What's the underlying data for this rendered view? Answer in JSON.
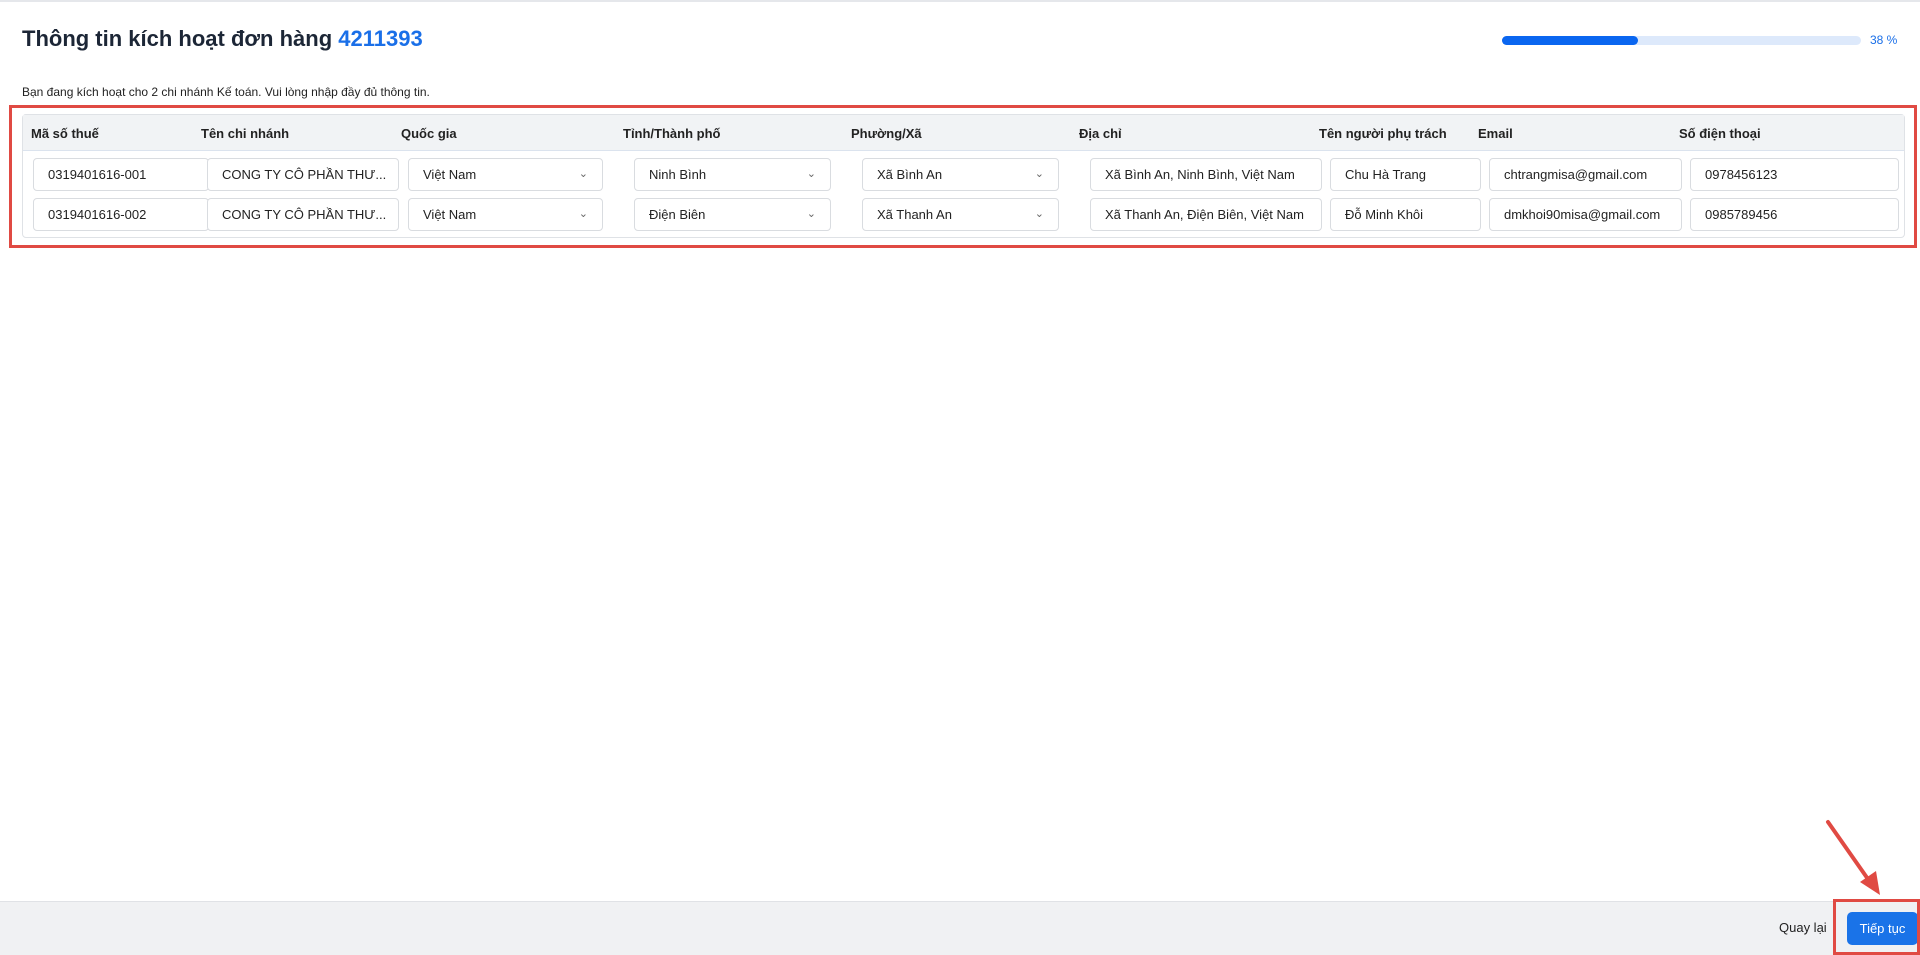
{
  "header": {
    "title": "Thông tin kích hoạt đơn hàng",
    "order_number": "4211393",
    "progress_percent": 38,
    "progress_label": "38 %"
  },
  "subtitle": "Bạn đang kích hoạt cho 2 chi nhánh Kế toán. Vui lòng nhập đầy đủ thông tin.",
  "table": {
    "columns": [
      "Mã số thuế",
      "Tên chi nhánh",
      "Quốc gia",
      "Tỉnh/Thành phố",
      "Phường/Xã",
      "Địa chỉ",
      "Tên người phụ trách",
      "Email",
      "Số điện thoại"
    ],
    "rows": [
      [
        "0319401616-001",
        "CONG TY CÔ PHẦN THƯ...",
        "Việt Nam",
        "Ninh Bình",
        "Xã Bình An",
        "Xã Bình An, Ninh Bình, Việt Nam",
        "Chu Hà Trang",
        "chtrangmisa@gmail.com",
        "0978456123"
      ],
      [
        "0319401616-002",
        "CONG TY CÔ PHẦN THƯ...",
        "Việt Nam",
        "Điện Biên",
        "Xã Thanh An",
        "Xã Thanh An, Điện Biên, Việt Nam",
        "Đỗ Minh Khôi",
        "dmkhoi90misa@gmail.com",
        "0985789456"
      ]
    ]
  },
  "footer": {
    "back_label": "Quay lại",
    "next_label": "Tiếp tục"
  },
  "colors": {
    "accent": "#1a73e8",
    "highlight": "#e04a43"
  }
}
